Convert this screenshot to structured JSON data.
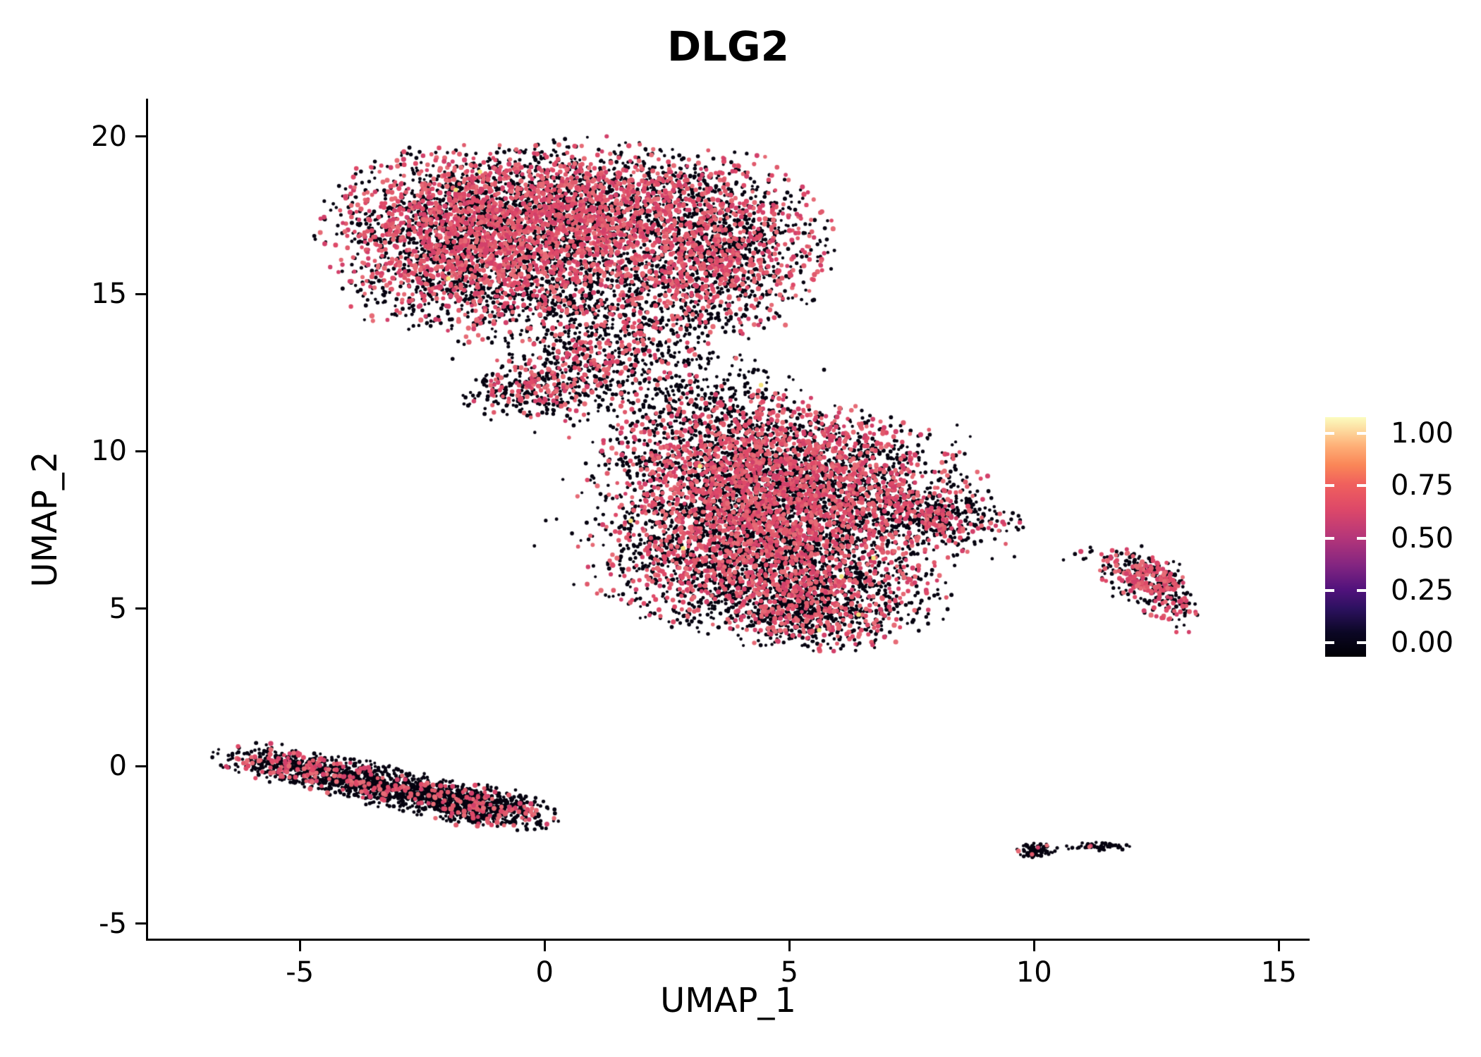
{
  "chart_data": {
    "type": "scatter",
    "title": "DLG2",
    "xlabel": "UMAP_1",
    "ylabel": "UMAP_2",
    "x_range": [
      -8.1,
      15.6
    ],
    "y_range": [
      -5.5,
      21.2
    ],
    "x_ticks": [
      {
        "label": "-5",
        "value": -5
      },
      {
        "label": "0",
        "value": 0
      },
      {
        "label": "5",
        "value": 5
      },
      {
        "label": "10",
        "value": 10
      },
      {
        "label": "15",
        "value": 15
      }
    ],
    "y_ticks": [
      {
        "label": "-5",
        "value": -5
      },
      {
        "label": "0",
        "value": 0
      },
      {
        "label": "5",
        "value": 5
      },
      {
        "label": "10",
        "value": 10
      },
      {
        "label": "15",
        "value": 15
      },
      {
        "label": "20",
        "value": 20
      }
    ],
    "legend": {
      "ticks": [
        {
          "label": "1.00",
          "value": 1.0
        },
        {
          "label": "0.75",
          "value": 0.75
        },
        {
          "label": "0.50",
          "value": 0.5
        },
        {
          "label": "0.25",
          "value": 0.25
        },
        {
          "label": "0.00",
          "value": 0.0
        }
      ],
      "gradient": [
        {
          "pos": 0.0,
          "color": "#000004"
        },
        {
          "pos": 0.1,
          "color": "#0B0724"
        },
        {
          "pos": 0.2,
          "color": "#2C115F"
        },
        {
          "pos": 0.28,
          "color": "#51127C"
        },
        {
          "pos": 0.38,
          "color": "#822581"
        },
        {
          "pos": 0.5,
          "color": "#B63679"
        },
        {
          "pos": 0.62,
          "color": "#DE4968"
        },
        {
          "pos": 0.72,
          "color": "#F0605D"
        },
        {
          "pos": 0.8,
          "color": "#FA8657"
        },
        {
          "pos": 0.88,
          "color": "#FEAF77"
        },
        {
          "pos": 1.0,
          "color": "#FCFDBF"
        }
      ]
    },
    "palette": {
      "zero": "#060310",
      "pink": [
        "#D2406A",
        "#DE4968",
        "#E05A6C",
        "#E66B76"
      ],
      "high": "#F3E27C"
    },
    "clusters": [
      {
        "name": "upper-left-blob",
        "blobs": [
          {
            "type": "g",
            "cx": -1.6,
            "cy": 17.0,
            "sx": 1.35,
            "sy": 1.25,
            "rot": 0,
            "n": 2500,
            "pink": 0.45
          },
          {
            "type": "g",
            "cx": 1.0,
            "cy": 17.6,
            "sx": 1.35,
            "sy": 1.05,
            "rot": 0,
            "n": 2100,
            "pink": 0.46
          },
          {
            "type": "g",
            "cx": 3.6,
            "cy": 16.5,
            "sx": 1.05,
            "sy": 1.35,
            "rot": 0,
            "n": 1500,
            "pink": 0.42
          },
          {
            "type": "g",
            "cx": 0.2,
            "cy": 14.9,
            "sx": 1.9,
            "sy": 0.75,
            "rot": -5,
            "n": 1000,
            "pink": 0.32
          },
          {
            "type": "g",
            "cx": 1.1,
            "cy": 12.8,
            "sx": 1.15,
            "sy": 0.75,
            "rot": 30,
            "n": 650,
            "pink": 0.26
          },
          {
            "type": "g",
            "cx": -0.4,
            "cy": 11.9,
            "sx": 0.6,
            "sy": 0.4,
            "rot": 15,
            "n": 220,
            "pink": 0.3
          },
          {
            "type": "g",
            "cx": 0.3,
            "cy": 16.2,
            "sx": 3.0,
            "sy": 2.1,
            "rot": 0,
            "n": 260,
            "pink": 0.15,
            "trunc": 1.8
          }
        ]
      },
      {
        "name": "central-blob",
        "blobs": [
          {
            "type": "g",
            "cx": 4.2,
            "cy": 9.4,
            "sx": 1.5,
            "sy": 1.15,
            "rot": 0,
            "n": 2300,
            "pink": 0.42
          },
          {
            "type": "g",
            "cx": 6.0,
            "cy": 8.4,
            "sx": 1.4,
            "sy": 1.25,
            "rot": 0,
            "n": 2000,
            "pink": 0.4
          },
          {
            "type": "g",
            "cx": 3.5,
            "cy": 6.8,
            "sx": 1.25,
            "sy": 1.15,
            "rot": 0,
            "n": 1500,
            "pink": 0.36
          },
          {
            "type": "g",
            "cx": 5.4,
            "cy": 5.6,
            "sx": 1.3,
            "sy": 0.85,
            "rot": -10,
            "n": 1200,
            "pink": 0.3
          },
          {
            "type": "g",
            "cx": 8.1,
            "cy": 7.9,
            "sx": 0.75,
            "sy": 0.45,
            "rot": -15,
            "n": 300,
            "pink": 0.25
          },
          {
            "type": "g",
            "cx": 3.1,
            "cy": 11.7,
            "sx": 1.05,
            "sy": 0.75,
            "rot": -20,
            "n": 330,
            "pink": 0.15
          },
          {
            "type": "g",
            "cx": 5.2,
            "cy": 4.8,
            "sx": 0.85,
            "sy": 0.5,
            "rot": -10,
            "n": 380,
            "pink": 0.3
          },
          {
            "type": "g",
            "cx": 4.8,
            "cy": 8.2,
            "sx": 2.9,
            "sy": 2.5,
            "rot": 0,
            "n": 240,
            "pink": 0.12,
            "trunc": 1.8
          }
        ]
      },
      {
        "name": "lower-left-stripe",
        "blobs": [
          {
            "type": "g",
            "cx": -3.0,
            "cy": -0.72,
            "sx": 1.55,
            "sy": 0.3,
            "rot": -18,
            "n": 1500,
            "pink": 0.12
          },
          {
            "type": "g",
            "cx": -5.4,
            "cy": 0.05,
            "sx": 0.65,
            "sy": 0.28,
            "rot": -14,
            "n": 280,
            "pink": 0.22
          },
          {
            "type": "g",
            "cx": -1.3,
            "cy": -1.25,
            "sx": 0.7,
            "sy": 0.33,
            "rot": -16,
            "n": 350,
            "pink": 0.15
          }
        ]
      },
      {
        "name": "right-small-cluster",
        "blobs": [
          {
            "type": "ring",
            "cx": 12.45,
            "cy": 5.9,
            "r": 0.38,
            "w": 0.1,
            "n": 160,
            "pink": 0.45
          },
          {
            "type": "g",
            "cx": 11.9,
            "cy": 6.4,
            "sx": 0.4,
            "sy": 0.28,
            "rot": 0,
            "n": 110,
            "pink": 0.4
          },
          {
            "type": "g",
            "cx": 12.9,
            "cy": 5.1,
            "sx": 0.22,
            "sy": 0.45,
            "rot": 10,
            "n": 90,
            "pink": 0.35
          },
          {
            "type": "g",
            "cx": 12.4,
            "cy": 5.7,
            "sx": 0.55,
            "sy": 0.65,
            "rot": 0,
            "n": 110,
            "pink": 0.3,
            "trunc": 1.6
          },
          {
            "type": "g",
            "cx": 11.05,
            "cy": 6.7,
            "sx": 0.2,
            "sy": 0.12,
            "rot": 0,
            "n": 7,
            "pink": 0.1
          }
        ]
      },
      {
        "name": "bottom-right-specks",
        "blobs": [
          {
            "type": "g",
            "cx": 10.05,
            "cy": -2.68,
            "sx": 0.2,
            "sy": 0.12,
            "rot": -5,
            "n": 90,
            "pink": 0.05
          },
          {
            "type": "g",
            "cx": 11.4,
            "cy": -2.55,
            "sx": 0.33,
            "sy": 0.06,
            "rot": -3,
            "n": 55,
            "pink": 0.02
          },
          {
            "type": "g",
            "cx": 10.75,
            "cy": -2.62,
            "sx": 0.05,
            "sy": 0.04,
            "rot": 0,
            "n": 6,
            "pink": 0.0
          }
        ]
      }
    ],
    "singles": [
      {
        "x": 6.7,
        "y": 3.85,
        "c": "pink"
      },
      {
        "x": 9.0,
        "y": 8.2,
        "c": "zero"
      },
      {
        "x": 10.6,
        "y": 6.55,
        "c": "zero"
      },
      {
        "x": 11.15,
        "y": 6.95,
        "c": "zero"
      },
      {
        "x": -0.2,
        "y": 10.6,
        "c": "zero"
      },
      {
        "x": 2.4,
        "y": 13.1,
        "c": "zero"
      }
    ]
  }
}
